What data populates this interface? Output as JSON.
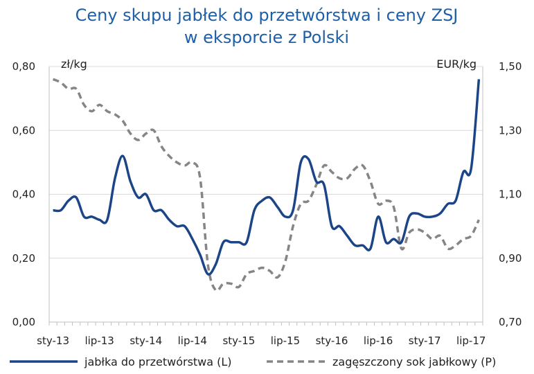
{
  "chart_data": {
    "type": "line",
    "title_line1": "Ceny skupu jabłek do przetwórstwa i ceny ZSJ",
    "title_line2": "w eksporcie z Polski",
    "left_unit": "zł/kg",
    "right_unit": "EUR/kg",
    "left_ylim": [
      0,
      0.8
    ],
    "right_ylim": [
      0.7,
      1.5
    ],
    "left_ticks": [
      "0,00",
      "0,20",
      "0,40",
      "0,60",
      "0,80"
    ],
    "right_ticks": [
      "0,70",
      "0,90",
      "1,10",
      "1,30",
      "1,50"
    ],
    "grid": true,
    "legend_position": "bottom",
    "categories": [
      "sty-13",
      "lut-13",
      "mar-13",
      "kwi-13",
      "maj-13",
      "cze-13",
      "lip-13",
      "sie-13",
      "wrz-13",
      "paź-13",
      "lis-13",
      "gru-13",
      "sty-14",
      "lut-14",
      "mar-14",
      "kwi-14",
      "maj-14",
      "cze-14",
      "lip-14",
      "sie-14",
      "wrz-14",
      "paź-14",
      "lis-14",
      "gru-14",
      "sty-15",
      "lut-15",
      "mar-15",
      "kwi-15",
      "maj-15",
      "cze-15",
      "lip-15",
      "sie-15",
      "wrz-15",
      "paź-15",
      "lis-15",
      "gru-15",
      "sty-16",
      "lut-16",
      "mar-16",
      "kwi-16",
      "maj-16",
      "cze-16",
      "lip-16",
      "sie-16",
      "wrz-16",
      "paź-16",
      "lis-16",
      "gru-16",
      "sty-17",
      "lut-17",
      "mar-17",
      "kwi-17",
      "maj-17",
      "cze-17",
      "lip-17",
      "sie-17"
    ],
    "x_tick_labels": [
      "sty-13",
      "lip-13",
      "sty-14",
      "lip-14",
      "sty-15",
      "lip-15",
      "sty-16",
      "lip-16",
      "sty-17",
      "lip-17"
    ],
    "series": [
      {
        "name": "jabłka do przetwórstwa (L)",
        "axis": "left",
        "color": "#1c4587",
        "style": "solid",
        "values": [
          0.35,
          0.35,
          0.38,
          0.39,
          0.33,
          0.33,
          0.32,
          0.32,
          0.45,
          0.52,
          0.44,
          0.39,
          0.4,
          0.35,
          0.35,
          0.32,
          0.3,
          0.3,
          0.26,
          0.21,
          0.15,
          0.18,
          0.25,
          0.25,
          0.25,
          0.25,
          0.35,
          0.38,
          0.39,
          0.36,
          0.33,
          0.35,
          0.5,
          0.51,
          0.44,
          0.43,
          0.3,
          0.3,
          0.27,
          0.24,
          0.24,
          0.23,
          0.33,
          0.25,
          0.26,
          0.25,
          0.33,
          0.34,
          0.33,
          0.33,
          0.34,
          0.37,
          0.38,
          0.47,
          0.48,
          0.76
        ]
      },
      {
        "name": "zagęszczony sok jabłkowy (P)",
        "axis": "right",
        "color": "#858585",
        "style": "dashed",
        "values": [
          1.46,
          1.45,
          1.43,
          1.43,
          1.38,
          1.36,
          1.38,
          1.36,
          1.35,
          1.33,
          1.29,
          1.27,
          1.29,
          1.3,
          1.25,
          1.22,
          1.2,
          1.19,
          1.2,
          1.15,
          0.88,
          0.8,
          0.82,
          0.82,
          0.81,
          0.85,
          0.86,
          0.87,
          0.86,
          0.84,
          0.89,
          1.0,
          1.07,
          1.08,
          1.13,
          1.19,
          1.17,
          1.15,
          1.15,
          1.18,
          1.19,
          1.14,
          1.07,
          1.08,
          1.06,
          0.93,
          0.98,
          0.99,
          0.98,
          0.96,
          0.97,
          0.93,
          0.94,
          0.96,
          0.97,
          1.02
        ]
      }
    ]
  }
}
